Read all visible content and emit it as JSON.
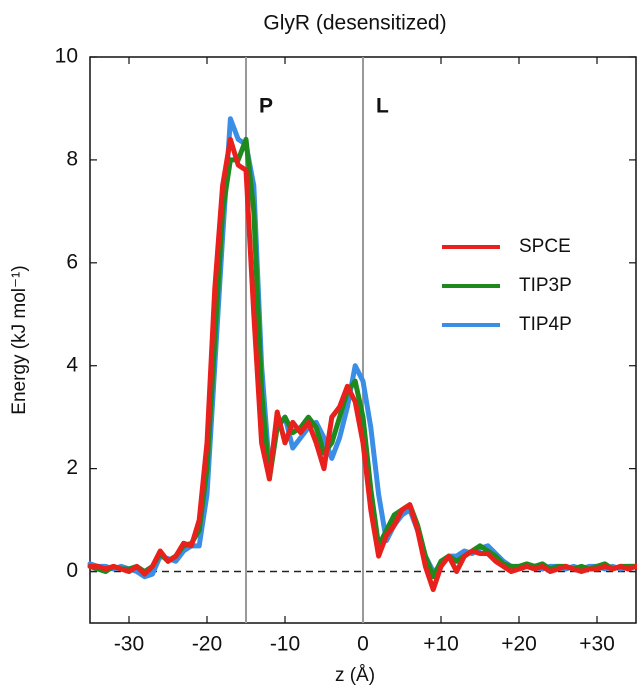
{
  "chart_data": {
    "type": "line",
    "title": "GlyR (desensitized)",
    "x_label": "z (Å)",
    "y_label": "Energy (kJ mol⁻¹)",
    "xlim": [
      -35,
      35
    ],
    "ylim": [
      -1,
      10
    ],
    "xticks": [
      -30,
      -20,
      -10,
      0,
      {
        "value": 10,
        "label": "+10"
      },
      {
        "value": 20,
        "label": "+20"
      },
      {
        "value": 30,
        "label": "+30"
      }
    ],
    "yticks": [
      0,
      2,
      4,
      6,
      8,
      10
    ],
    "annotations": [
      {
        "text": "P",
        "x": -15
      },
      {
        "text": "L",
        "x": 0
      }
    ],
    "x": [
      -35,
      -34,
      -33,
      -32,
      -31,
      -30,
      -29,
      -28,
      -27,
      -26,
      -25,
      -24,
      -23,
      -22,
      -21,
      -20,
      -19,
      -18,
      -17,
      -16,
      -15,
      -14,
      -13,
      -12,
      -11,
      -10,
      -9,
      -8,
      -7,
      -6,
      -5,
      -4,
      -3,
      -2,
      -1,
      0,
      1,
      2,
      3,
      4,
      5,
      6,
      7,
      8,
      9,
      10,
      11,
      12,
      13,
      14,
      15,
      16,
      17,
      18,
      19,
      20,
      21,
      22,
      23,
      24,
      25,
      26,
      27,
      28,
      29,
      30,
      31,
      32,
      33,
      34,
      35
    ],
    "series": [
      {
        "name": "SPCE",
        "color": "#e8211c",
        "values": [
          0.1,
          0.1,
          0.05,
          0.1,
          0.05,
          0.0,
          0.1,
          -0.05,
          0.1,
          0.4,
          0.2,
          0.3,
          0.55,
          0.5,
          1.0,
          2.5,
          5.5,
          7.5,
          8.4,
          7.9,
          7.8,
          5.0,
          2.5,
          1.8,
          3.1,
          2.5,
          2.9,
          2.7,
          2.9,
          2.5,
          2.0,
          3.0,
          3.2,
          3.6,
          3.3,
          2.5,
          1.2,
          0.3,
          0.7,
          0.9,
          1.2,
          1.3,
          0.8,
          0.1,
          -0.35,
          0.1,
          0.3,
          0.0,
          0.3,
          0.4,
          0.35,
          0.35,
          0.2,
          0.1,
          0.0,
          0.05,
          0.1,
          0.05,
          0.1,
          0.0,
          0.05,
          0.1,
          0.05,
          0.0,
          0.05,
          0.05,
          0.1,
          0.05,
          0.1,
          0.05,
          0.1
        ]
      },
      {
        "name": "TIP3P",
        "color": "#1e8a1e",
        "values": [
          0.1,
          0.05,
          0.0,
          0.1,
          0.05,
          0.05,
          0.1,
          0.0,
          0.1,
          0.35,
          0.2,
          0.3,
          0.5,
          0.55,
          0.8,
          2.0,
          4.5,
          7.0,
          8.0,
          8.0,
          8.4,
          7.0,
          3.5,
          1.8,
          2.8,
          3.0,
          2.7,
          2.8,
          3.0,
          2.8,
          2.3,
          2.5,
          3.0,
          3.5,
          3.7,
          3.0,
          1.6,
          0.5,
          0.8,
          1.1,
          1.2,
          1.3,
          0.9,
          0.3,
          -0.1,
          0.2,
          0.3,
          0.2,
          0.3,
          0.4,
          0.5,
          0.4,
          0.3,
          0.15,
          0.1,
          0.1,
          0.15,
          0.1,
          0.15,
          0.05,
          0.1,
          0.1,
          0.05,
          0.1,
          0.05,
          0.1,
          0.15,
          0.05,
          0.1,
          0.1,
          0.1
        ]
      },
      {
        "name": "TIP4P",
        "color": "#3a8ee6",
        "values": [
          0.15,
          0.1,
          0.1,
          0.05,
          0.1,
          0.05,
          0.0,
          -0.1,
          -0.05,
          0.3,
          0.25,
          0.2,
          0.4,
          0.5,
          0.5,
          1.5,
          4.0,
          6.5,
          8.8,
          8.4,
          8.3,
          7.5,
          4.0,
          2.0,
          2.8,
          3.0,
          2.4,
          2.6,
          2.8,
          2.9,
          2.6,
          2.2,
          2.6,
          3.2,
          4.0,
          3.7,
          2.8,
          1.5,
          0.6,
          0.9,
          1.1,
          1.2,
          0.8,
          0.3,
          0.0,
          0.1,
          0.3,
          0.3,
          0.4,
          0.35,
          0.45,
          0.5,
          0.35,
          0.2,
          0.1,
          0.05,
          0.1,
          0.1,
          0.05,
          0.1,
          0.1,
          0.05,
          0.1,
          0.05,
          0.1,
          0.1,
          0.05,
          0.1,
          0.05,
          0.1,
          0.1
        ]
      }
    ]
  }
}
